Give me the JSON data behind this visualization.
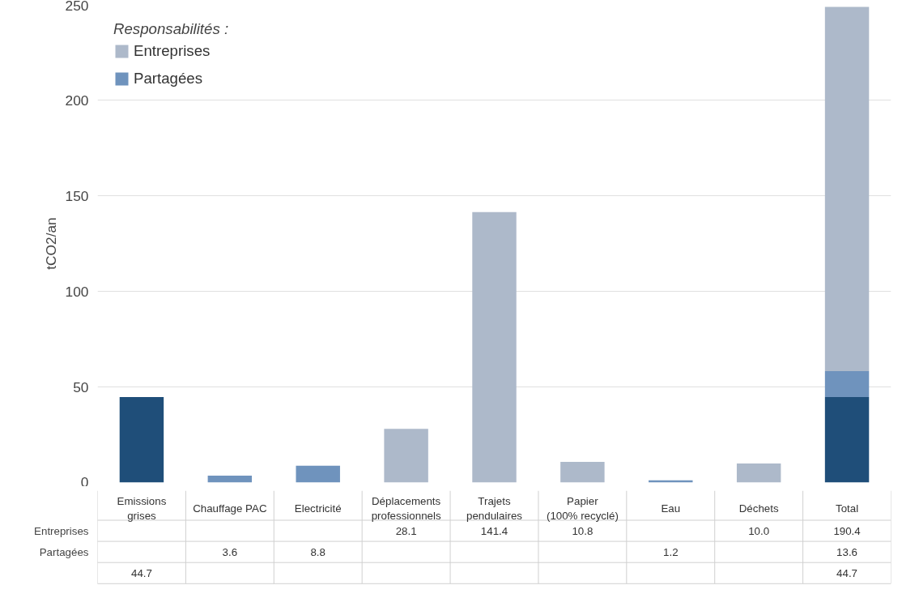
{
  "chart_data": {
    "type": "bar",
    "stacked": true,
    "ylabel": "tCO2/an",
    "legend_title": "Responsabilités :",
    "legend": "top left",
    "grid": "y",
    "categories": [
      "Emissions grises",
      "Chauffage PAC",
      "Electricité",
      "Déplacements professionnels",
      "Trajets pendulaires",
      "Papier (100% recyclé)",
      "Eau",
      "Déchets",
      "Total"
    ],
    "ylim": [
      0,
      250
    ],
    "yticks": [
      0,
      50,
      100,
      150,
      200,
      250
    ],
    "series": [
      {
        "name": null,
        "color": "#1f4e79",
        "values": [
          44.7,
          null,
          null,
          null,
          null,
          null,
          null,
          null,
          44.7
        ],
        "value_labels": [
          "44.7",
          null,
          null,
          null,
          null,
          null,
          null,
          null,
          "44.7"
        ]
      },
      {
        "name": "Partagées",
        "color": "#6f93bd",
        "values": [
          null,
          3.6,
          8.8,
          null,
          null,
          null,
          1.2,
          null,
          13.6
        ],
        "value_labels": [
          null,
          "3.6",
          "8.8",
          null,
          null,
          null,
          "1.2",
          null,
          "13.6"
        ]
      },
      {
        "name": "Entreprises",
        "color": "#adb9ca",
        "values": [
          null,
          null,
          null,
          28.1,
          141.4,
          10.8,
          null,
          10.0,
          190.4
        ],
        "value_labels": [
          null,
          null,
          null,
          "28.1",
          "141.4",
          "10.8",
          null,
          "10.0",
          "190.4"
        ]
      }
    ]
  }
}
